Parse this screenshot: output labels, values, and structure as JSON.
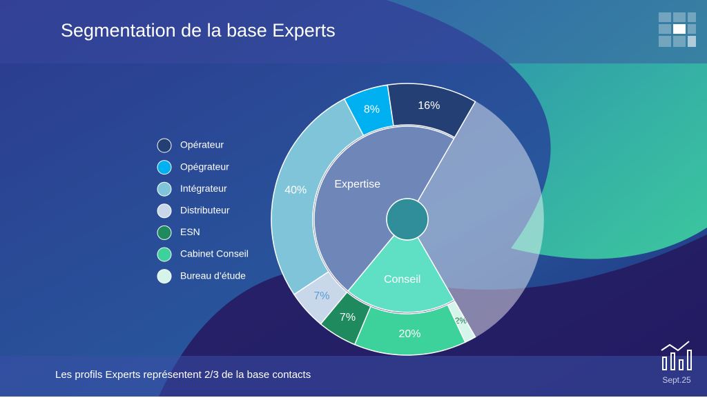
{
  "chart_data": {
    "type": "sunburst",
    "title": "Segmentation de la base Experts",
    "outer": {
      "categories": [
        "Opérateur",
        "Opégrateur",
        "Intégrateur",
        "Distributeur",
        "ESN",
        "Cabinet Conseil",
        "Bureau d’étude"
      ],
      "values": [
        16,
        8,
        40,
        7,
        7,
        20,
        2
      ],
      "value_labels": [
        "16%",
        "8%",
        "40%",
        "7%",
        "7%",
        "20%",
        "2%"
      ],
      "colors": [
        "#243f73",
        "#00b0f0",
        "#7fc4d8",
        "#c8d8ea",
        "#1f8a5e",
        "#3dd19c",
        "#d6f5ea"
      ],
      "label_colors": [
        "#ffffff",
        "#ffffff",
        "#ffffff",
        "#5b9bd5",
        "#ffffff",
        "#ffffff",
        "#1f6e4e"
      ]
    },
    "inner": {
      "categories": [
        "Expertise",
        "Conseil"
      ],
      "values": [
        71,
        29
      ],
      "colors": [
        "#6f86b8",
        "#5fe0c4"
      ]
    }
  },
  "footer": {
    "text": "Les profils Experts représentent 2/3 de la base contacts",
    "date": "Sept.25"
  }
}
